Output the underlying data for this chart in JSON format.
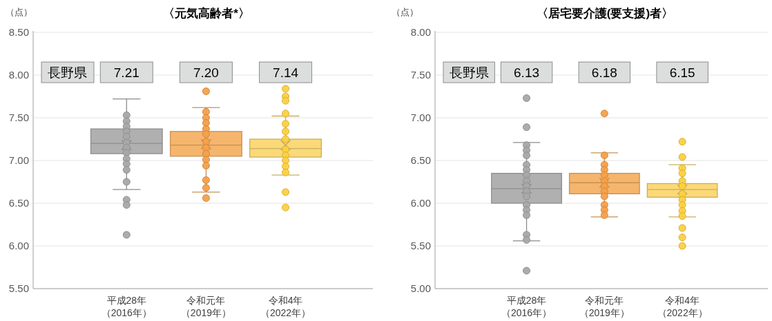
{
  "chart_data": [
    {
      "type": "box",
      "title": "〈元気高齢者*〉",
      "ylabel": "（点）",
      "categories": [
        "平成28年（2016年）",
        "令和元年（2019年）",
        "令和4年（2022年）"
      ],
      "boxes": [
        {
          "low": 6.66,
          "q1": 7.08,
          "median": 7.2,
          "q3": 7.37,
          "high": 7.72,
          "mean": 7.18
        },
        {
          "low": 6.63,
          "q1": 7.05,
          "median": 7.18,
          "q3": 7.34,
          "high": 7.62,
          "mean": 7.19
        },
        {
          "low": 6.83,
          "q1": 7.04,
          "median": 7.14,
          "q3": 7.25,
          "high": 7.52,
          "mean": 7.18
        }
      ],
      "colors": [
        "#b0b0b0",
        "#f5b56c",
        "#fbd978"
      ],
      "series": [
        {
          "type": "scatter",
          "color": "#a8a8a8",
          "x": [
            "平成28年（2016年）",
            "平成28年（2016年）",
            "平成28年（2016年）",
            "平成28年（2016年）",
            "平成28年（2016年）",
            "平成28年（2016年）",
            "平成28年（2016年）",
            "平成28年（2016年）",
            "平成28年（2016年）",
            "平成28年（2016年）",
            "平成28年（2016年）",
            "平成28年（2016年）",
            "平成28年（2016年）",
            "平成28年（2016年）",
            "平成28年（2016年）"
          ],
          "values": [
            7.53,
            7.46,
            7.4,
            7.34,
            7.28,
            7.21,
            7.15,
            7.09,
            7.02,
            6.96,
            6.89,
            6.75,
            6.54,
            6.48,
            6.13
          ]
        },
        {
          "type": "scatter",
          "color": "#f5a04a",
          "x": [
            "令和元年（2019年）",
            "令和元年（2019年）",
            "令和元年（2019年）",
            "令和元年（2019年）",
            "令和元年（2019年）",
            "令和元年（2019年）",
            "令和元年（2019年）",
            "令和元年（2019年）",
            "令和元年（2019年）",
            "令和元年（2019年）",
            "令和元年（2019年）",
            "令和元年（2019年）",
            "令和元年（2019年）",
            "令和元年（2019年）"
          ],
          "values": [
            7.81,
            7.57,
            7.5,
            7.44,
            7.37,
            7.31,
            7.22,
            7.15,
            7.08,
            7.01,
            6.94,
            6.77,
            6.68,
            6.56
          ]
        },
        {
          "type": "scatter",
          "color": "#fcd040",
          "x": [
            "令和4年（2022年）",
            "令和4年（2022年）",
            "令和4年（2022年）",
            "令和4年（2022年）",
            "令和4年（2022年）",
            "令和4年（2022年）",
            "令和4年（2022年）",
            "令和4年（2022年）",
            "令和4年（2022年）",
            "令和4年（2022年）",
            "令和4年（2022年）",
            "令和4年（2022年）",
            "令和4年（2022年）",
            "令和4年（2022年）"
          ],
          "values": [
            7.84,
            7.75,
            7.7,
            7.55,
            7.43,
            7.34,
            7.25,
            7.13,
            7.06,
            7.0,
            6.93,
            6.86,
            6.63,
            6.45
          ]
        }
      ],
      "marker": "circle",
      "grid": "y",
      "ylim": [
        5.5,
        8.5
      ],
      "yticks": [
        {
          "value": 5.5,
          "label": "5.50"
        },
        {
          "value": 6,
          "label": "6.00"
        },
        {
          "value": 6.5,
          "label": "6.50"
        },
        {
          "value": 7,
          "label": "7.00"
        },
        {
          "value": 7.5,
          "label": "7.50"
        },
        {
          "value": 8,
          "label": "8.00"
        },
        {
          "value": 8.5,
          "label": "8.50"
        }
      ],
      "annotations": [
        "長野県",
        "7.21",
        "7.20",
        "7.14"
      ]
    },
    {
      "type": "box",
      "title": "〈居宅要介護(要支援)者〉",
      "ylabel": "（点）",
      "categories": [
        "平成28年（2016年）",
        "令和元年（2019年）",
        "令和4年（2022年）"
      ],
      "boxes": [
        {
          "low": 5.56,
          "q1": 6.0,
          "median": 6.17,
          "q3": 6.35,
          "high": 6.71,
          "mean": 6.17
        },
        {
          "low": 5.84,
          "q1": 6.11,
          "median": 6.24,
          "q3": 6.35,
          "high": 6.59,
          "mean": 6.24
        },
        {
          "low": 5.84,
          "q1": 6.07,
          "median": 6.16,
          "q3": 6.23,
          "high": 6.45,
          "mean": 6.16
        }
      ],
      "colors": [
        "#b0b0b0",
        "#f5b56c",
        "#fbd978"
      ],
      "series": [
        {
          "type": "scatter",
          "color": "#a8a8a8",
          "x": [
            "平成28年（2016年）",
            "平成28年（2016年）",
            "平成28年（2016年）",
            "平成28年（2016年）",
            "平成28年（2016年）",
            "平成28年（2016年）",
            "平成28年（2016年）",
            "平成28年（2016年）",
            "平成28年（2016年）",
            "平成28年（2016年）",
            "平成28年（2016年）",
            "平成28年（2016年）",
            "平成28年（2016年）",
            "平成28年（2016年）",
            "平成28年（2016年）",
            "平成28年（2016年）",
            "平成28年（2016年）",
            "平成28年（2016年）"
          ],
          "values": [
            7.23,
            6.89,
            6.68,
            6.62,
            6.56,
            6.45,
            6.39,
            6.33,
            6.26,
            6.2,
            6.14,
            6.08,
            5.98,
            5.92,
            5.86,
            5.63,
            5.57,
            5.21
          ]
        },
        {
          "type": "scatter",
          "color": "#f5a04a",
          "x": [
            "令和元年（2019年）",
            "令和元年（2019年）",
            "令和元年（2019年）",
            "令和元年（2019年）",
            "令和元年（2019年）",
            "令和元年（2019年）",
            "令和元年（2019年）",
            "令和元年（2019年）",
            "令和元年（2019年）",
            "令和元年（2019年）",
            "令和元年（2019年）",
            "令和元年（2019年）"
          ],
          "values": [
            7.05,
            6.56,
            6.45,
            6.39,
            6.33,
            6.26,
            6.2,
            6.14,
            6.08,
            5.98,
            5.92,
            5.86
          ]
        },
        {
          "type": "scatter",
          "color": "#fcd040",
          "x": [
            "令和4年（2022年）",
            "令和4年（2022年）",
            "令和4年（2022年）",
            "令和4年（2022年）",
            "令和4年（2022年）",
            "令和4年（2022年）",
            "令和4年（2022年）",
            "令和4年（2022年）",
            "令和4年（2022年）",
            "令和4年（2022年）",
            "令和4年（2022年）",
            "令和4年（2022年）",
            "令和4年（2022年）",
            "令和4年（2022年）"
          ],
          "values": [
            6.72,
            6.54,
            6.41,
            6.35,
            6.26,
            6.2,
            6.11,
            6.04,
            5.98,
            5.91,
            5.85,
            5.71,
            5.6,
            5.5
          ]
        }
      ],
      "marker": "circle",
      "grid": "y",
      "ylim": [
        5.0,
        8.0
      ],
      "yticks": [
        {
          "value": 5,
          "label": "5.00"
        },
        {
          "value": 5.5,
          "label": "5.50"
        },
        {
          "value": 6,
          "label": "6.00"
        },
        {
          "value": 6.5,
          "label": "6.50"
        },
        {
          "value": 7,
          "label": "7.00"
        },
        {
          "value": 7.5,
          "label": "7.50"
        },
        {
          "value": 8,
          "label": "8.00"
        }
      ],
      "annotations": [
        "長野県",
        "6.13",
        "6.18",
        "6.15"
      ]
    }
  ]
}
